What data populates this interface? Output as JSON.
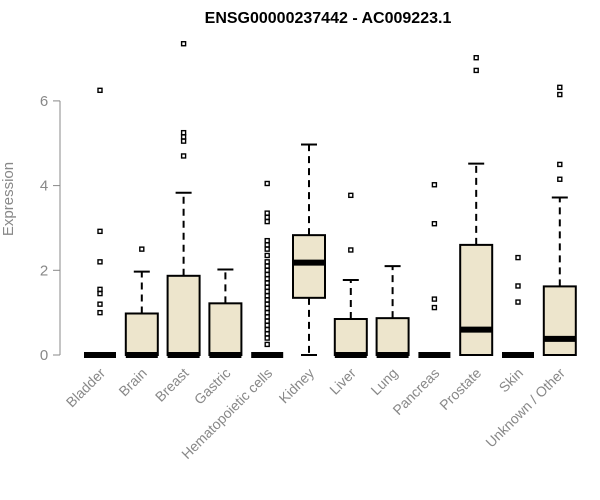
{
  "chart_data": {
    "type": "boxplot",
    "title": "ENSG00000237442 - AC009223.1",
    "ylabel": "Expression",
    "xlabel": "",
    "ylim": [
      0,
      7.5
    ],
    "yticks": [
      0,
      2,
      4,
      6
    ],
    "grid": false,
    "legend": "none",
    "box_fill": "#EDE5CC",
    "categories": [
      "Bladder",
      "Brain",
      "Breast",
      "Gastric",
      "Hematopoietic cells",
      "Kidney",
      "Liver",
      "Lung",
      "Pancreas",
      "Prostate",
      "Skin",
      "Unknown / Other"
    ],
    "boxes": [
      {
        "category": "Bladder",
        "q1": 0,
        "median": 0,
        "q3": 0,
        "whisker_low": 0,
        "whisker_high": 0,
        "outliers": [
          1.0,
          1.2,
          1.45,
          1.55,
          2.2,
          2.92,
          6.25
        ]
      },
      {
        "category": "Brain",
        "q1": 0,
        "median": 0,
        "q3": 0.98,
        "whisker_low": 0,
        "whisker_high": 1.97,
        "outliers": [
          2.5
        ]
      },
      {
        "category": "Breast",
        "q1": 0,
        "median": 0,
        "q3": 1.87,
        "whisker_low": 0,
        "whisker_high": 3.83,
        "outliers": [
          4.7,
          5.05,
          5.15,
          5.25,
          7.35
        ]
      },
      {
        "category": "Gastric",
        "q1": 0,
        "median": 0,
        "q3": 1.22,
        "whisker_low": 0,
        "whisker_high": 2.02,
        "outliers": []
      },
      {
        "category": "Hematopoietic cells",
        "q1": 0,
        "median": 0,
        "q3": 0,
        "whisker_low": 0,
        "whisker_high": 0,
        "outliers": [
          0.25,
          0.4,
          0.5,
          0.6,
          0.7,
          0.8,
          0.9,
          1.0,
          1.1,
          1.2,
          1.3,
          1.4,
          1.5,
          1.6,
          1.7,
          1.8,
          1.9,
          2.0,
          2.1,
          2.2,
          2.35,
          2.5,
          2.6,
          2.7,
          3.15,
          3.25,
          3.35,
          4.05
        ]
      },
      {
        "category": "Kidney",
        "q1": 1.35,
        "median": 2.18,
        "q3": 2.83,
        "whisker_low": 0,
        "whisker_high": 4.97,
        "outliers": []
      },
      {
        "category": "Liver",
        "q1": 0,
        "median": 0,
        "q3": 0.85,
        "whisker_low": 0,
        "whisker_high": 1.77,
        "outliers": [
          2.48,
          3.77
        ]
      },
      {
        "category": "Lung",
        "q1": 0,
        "median": 0,
        "q3": 0.87,
        "whisker_low": 0,
        "whisker_high": 2.1,
        "outliers": []
      },
      {
        "category": "Pancreas",
        "q1": 0,
        "median": 0,
        "q3": 0,
        "whisker_low": 0,
        "whisker_high": 0,
        "outliers": [
          1.12,
          1.32,
          3.1,
          4.02
        ]
      },
      {
        "category": "Prostate",
        "q1": 0,
        "median": 0.6,
        "q3": 2.6,
        "whisker_low": 0,
        "whisker_high": 4.52,
        "outliers": [
          6.72,
          7.02
        ]
      },
      {
        "category": "Skin",
        "q1": 0,
        "median": 0,
        "q3": 0,
        "whisker_low": 0,
        "whisker_high": 0,
        "outliers": [
          1.25,
          1.63,
          2.3
        ]
      },
      {
        "category": "Unknown / Other",
        "q1": 0,
        "median": 0.38,
        "q3": 1.62,
        "whisker_low": 0,
        "whisker_high": 3.72,
        "outliers": [
          4.15,
          4.5,
          6.15,
          6.32
        ]
      }
    ]
  }
}
